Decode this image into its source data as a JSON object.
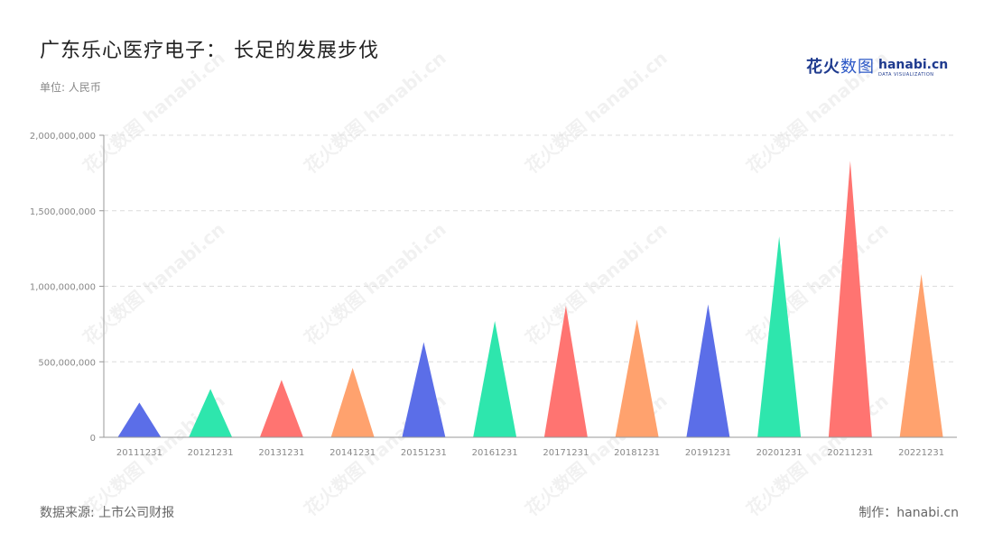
{
  "title": "广东乐心医疗电子： 长足的发展步伐",
  "unit_label": "单位: 人民币",
  "logo": {
    "cn_bold": "花火",
    "cn_light": "数图",
    "en": "hanabi.cn",
    "en_sub": "DATA VISUALIZATION"
  },
  "source": "数据来源: 上市公司财报",
  "credit": "制作：hanabi.cn",
  "watermark_text": "花火数图 hanabi.cn",
  "colors": [
    "#5b6ee8",
    "#2ee6ad",
    "#ff7471",
    "#ffa26e"
  ],
  "chart_data": {
    "type": "bar",
    "bar_shape": "triangle",
    "categories": [
      "20111231",
      "20121231",
      "20131231",
      "20141231",
      "20151231",
      "20161231",
      "20171231",
      "20181231",
      "20191231",
      "20201231",
      "20211231",
      "20221231"
    ],
    "values": [
      230000000,
      320000000,
      380000000,
      460000000,
      630000000,
      770000000,
      870000000,
      780000000,
      880000000,
      1330000000,
      1830000000,
      1080000000
    ],
    "y_ticks": [
      0,
      500000000,
      1000000000,
      1500000000,
      2000000000
    ],
    "y_tick_labels": [
      "0",
      "500,000,000",
      "1,000,000,000",
      "1,500,000,000",
      "2,000,000,000"
    ],
    "ylim": [
      0,
      2000000000
    ],
    "grid": true
  }
}
